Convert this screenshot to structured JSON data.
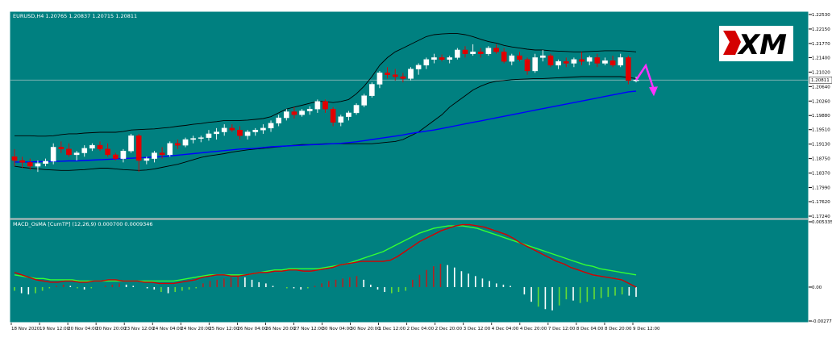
{
  "window": {
    "main_title": "EURUSD,H4  1.20765 1.20837 1.20715 1.20811",
    "sub_title": "MACD_OsMA [CumTP] (12,26,9) 0.000700 0.0009346",
    "logo_text": "XM"
  },
  "colors": {
    "panel_bg": "#008080",
    "candle_bull": "#ffffff",
    "candle_bear": "#e00000",
    "band": "#000000",
    "ma": "#0000ff",
    "macd_line": "#d40000",
    "signal_line": "#33ff33",
    "hist_pos_up": "#ffffff",
    "hist_pos_down": "#b22222",
    "hist_neg_up": "#66dd33",
    "hist_neg_down": "#ffffff",
    "arrow": "#ff33ff"
  },
  "price_axis": {
    "labels": [
      "1.22530",
      "1.22150",
      "1.21770",
      "1.21400",
      "1.21020",
      "1.20640",
      "1.20260",
      "1.19880",
      "1.19510",
      "1.19130",
      "1.18750",
      "1.18370",
      "1.17990",
      "1.17620",
      "1.17240"
    ],
    "current": "1.20811"
  },
  "macd_axis": {
    "labels": [
      "0.005335",
      "0.00",
      "-0.00277"
    ]
  },
  "time_axis": {
    "labels": [
      "18 Nov 2020",
      "19 Nov 12:00",
      "20 Nov 04:00",
      "20 Nov 20:00",
      "23 Nov 12:00",
      "24 Nov 04:00",
      "24 Nov 20:00",
      "25 Nov 12:00",
      "26 Nov 04:00",
      "26 Nov 20:00",
      "27 Nov 12:00",
      "30 Nov 04:00",
      "30 Nov 20:00",
      "1 Dec 12:00",
      "2 Dec 04:00",
      "2 Dec 20:00",
      "3 Dec 12:00",
      "4 Dec 04:00",
      "4 Dec 20:00",
      "7 Dec 12:00",
      "8 Dec 04:00",
      "8 Dec 20:00",
      "9 Dec 12:00"
    ]
  },
  "chart_data": [
    {
      "type": "candlestick",
      "title": "EURUSD,H4",
      "ylim": [
        1.1724,
        1.2253
      ],
      "x": [
        "18 Nov 2020",
        "19 Nov 12:00",
        "20 Nov 04:00",
        "20 Nov 20:00",
        "23 Nov 12:00",
        "24 Nov 04:00",
        "24 Nov 20:00",
        "25 Nov 12:00",
        "26 Nov 04:00",
        "26 Nov 20:00",
        "27 Nov 12:00",
        "30 Nov 04:00",
        "30 Nov 20:00",
        "1 Dec 12:00",
        "2 Dec 04:00",
        "2 Dec 20:00",
        "3 Dec 12:00",
        "4 Dec 04:00",
        "4 Dec 20:00",
        "7 Dec 12:00",
        "8 Dec 04:00",
        "8 Dec 20:00",
        "9 Dec 12:00"
      ],
      "candles": [
        [
          1.188,
          1.19,
          1.1855,
          1.187
        ],
        [
          1.187,
          1.188,
          1.185,
          1.1865
        ],
        [
          1.1865,
          1.1875,
          1.1845,
          1.1855
        ],
        [
          1.1855,
          1.187,
          1.184,
          1.1862
        ],
        [
          1.1862,
          1.1875,
          1.1855,
          1.1868
        ],
        [
          1.1868,
          1.1915,
          1.186,
          1.1905
        ],
        [
          1.1905,
          1.192,
          1.189,
          1.19
        ],
        [
          1.19,
          1.1915,
          1.188,
          1.1885
        ],
        [
          1.1885,
          1.1895,
          1.187,
          1.189
        ],
        [
          1.189,
          1.191,
          1.188,
          1.1902
        ],
        [
          1.1902,
          1.1915,
          1.1895,
          1.191
        ],
        [
          1.191,
          1.192,
          1.1895,
          1.19
        ],
        [
          1.19,
          1.1915,
          1.188,
          1.1885
        ],
        [
          1.1885,
          1.189,
          1.187,
          1.1875
        ],
        [
          1.1875,
          1.19,
          1.1865,
          1.1895
        ],
        [
          1.1895,
          1.194,
          1.189,
          1.1935
        ],
        [
          1.1935,
          1.194,
          1.184,
          1.187
        ],
        [
          1.187,
          1.188,
          1.186,
          1.1875
        ],
        [
          1.1875,
          1.1895,
          1.1865,
          1.189
        ],
        [
          1.189,
          1.1905,
          1.1875,
          1.1885
        ],
        [
          1.1885,
          1.192,
          1.188,
          1.1915
        ],
        [
          1.1915,
          1.1925,
          1.19,
          1.191
        ],
        [
          1.191,
          1.193,
          1.1905,
          1.1925
        ],
        [
          1.1925,
          1.1935,
          1.1915,
          1.1928
        ],
        [
          1.1928,
          1.1935,
          1.1918,
          1.193
        ],
        [
          1.193,
          1.195,
          1.1922,
          1.194
        ],
        [
          1.194,
          1.1955,
          1.1925,
          1.1945
        ],
        [
          1.1945,
          1.1965,
          1.1935,
          1.1955
        ],
        [
          1.1955,
          1.1965,
          1.1945,
          1.195
        ],
        [
          1.195,
          1.196,
          1.1925,
          1.1935
        ],
        [
          1.1935,
          1.195,
          1.1925,
          1.1945
        ],
        [
          1.1945,
          1.1955,
          1.1935,
          1.195
        ],
        [
          1.195,
          1.1965,
          1.194,
          1.1955
        ],
        [
          1.1955,
          1.1975,
          1.1945,
          1.1968
        ],
        [
          1.1968,
          1.199,
          1.196,
          1.1982
        ],
        [
          1.1982,
          1.2005,
          1.1975,
          1.1998
        ],
        [
          1.1998,
          1.201,
          1.198,
          1.199
        ],
        [
          1.199,
          1.2005,
          1.1985,
          1.2
        ],
        [
          1.2,
          1.2012,
          1.199,
          1.2005
        ],
        [
          1.2005,
          1.203,
          1.1995,
          1.2025
        ],
        [
          1.2025,
          1.203,
          1.1995,
          1.2005
        ],
        [
          1.2005,
          1.201,
          1.196,
          1.197
        ],
        [
          1.197,
          1.199,
          1.196,
          1.1985
        ],
        [
          1.1985,
          1.2,
          1.1975,
          1.1995
        ],
        [
          1.1995,
          1.202,
          1.199,
          1.2015
        ],
        [
          1.2015,
          1.2045,
          1.201,
          1.204
        ],
        [
          1.204,
          1.2075,
          1.2035,
          1.207
        ],
        [
          1.207,
          1.2105,
          1.206,
          1.21
        ],
        [
          1.21,
          1.2115,
          1.2085,
          1.2095
        ],
        [
          1.2095,
          1.211,
          1.208,
          1.209
        ],
        [
          1.209,
          1.21,
          1.2075,
          1.2085
        ],
        [
          1.2085,
          1.2115,
          1.208,
          1.211
        ],
        [
          1.211,
          1.2125,
          1.2095,
          1.212
        ],
        [
          1.212,
          1.214,
          1.211,
          1.2135
        ],
        [
          1.2135,
          1.215,
          1.2125,
          1.214
        ],
        [
          1.214,
          1.2148,
          1.213,
          1.2135
        ],
        [
          1.2135,
          1.2145,
          1.2125,
          1.214
        ],
        [
          1.214,
          1.2165,
          1.2135,
          1.216
        ],
        [
          1.216,
          1.217,
          1.214,
          1.215
        ],
        [
          1.215,
          1.2175,
          1.2145,
          1.2155
        ],
        [
          1.2155,
          1.2165,
          1.214,
          1.215
        ],
        [
          1.215,
          1.217,
          1.2145,
          1.2165
        ],
        [
          1.2165,
          1.2175,
          1.215,
          1.2155
        ],
        [
          1.2155,
          1.2165,
          1.2125,
          1.213
        ],
        [
          1.213,
          1.215,
          1.212,
          1.2145
        ],
        [
          1.2145,
          1.2155,
          1.213,
          1.2135
        ],
        [
          1.2135,
          1.214,
          1.2095,
          1.2105
        ],
        [
          1.2105,
          1.215,
          1.21,
          1.214
        ],
        [
          1.214,
          1.216,
          1.213,
          1.2145
        ],
        [
          1.2145,
          1.215,
          1.2115,
          1.212
        ],
        [
          1.212,
          1.2135,
          1.211,
          1.213
        ],
        [
          1.213,
          1.214,
          1.2115,
          1.2125
        ],
        [
          1.2125,
          1.214,
          1.2115,
          1.2135
        ],
        [
          1.2135,
          1.2155,
          1.212,
          1.213
        ],
        [
          1.213,
          1.2145,
          1.212,
          1.214
        ],
        [
          1.214,
          1.215,
          1.2115,
          1.2125
        ],
        [
          1.2125,
          1.214,
          1.212,
          1.2132
        ],
        [
          1.2132,
          1.2145,
          1.2115,
          1.212
        ],
        [
          1.212,
          1.215,
          1.2115,
          1.214
        ],
        [
          1.214,
          1.2145,
          1.207,
          1.208
        ],
        [
          1.208,
          1.209,
          1.2075,
          1.2081
        ]
      ],
      "bands_upper": [
        1.1935,
        1.1935,
        1.1935,
        1.1934,
        1.1934,
        1.1935,
        1.1938,
        1.194,
        1.194,
        1.1942,
        1.1943,
        1.1944,
        1.1944,
        1.1944,
        1.1946,
        1.195,
        1.1951,
        1.1952,
        1.1953,
        1.1955,
        1.1957,
        1.196,
        1.1962,
        1.1965,
        1.1967,
        1.197,
        1.1972,
        1.1975,
        1.1975,
        1.1975,
        1.1976,
        1.1978,
        1.198,
        1.1985,
        1.1995,
        1.2005,
        1.201,
        1.2015,
        1.202,
        1.2025,
        1.2025,
        1.2022,
        1.2025,
        1.203,
        1.2045,
        1.2065,
        1.209,
        1.212,
        1.214,
        1.2155,
        1.2165,
        1.2175,
        1.2185,
        1.2195,
        1.22,
        1.2202,
        1.2203,
        1.2203,
        1.22,
        1.2195,
        1.2188,
        1.2182,
        1.2178,
        1.2172,
        1.2168,
        1.2165,
        1.2162,
        1.216,
        1.216,
        1.2158,
        1.2157,
        1.2156,
        1.2155,
        1.2155,
        1.2156,
        1.2157,
        1.2158,
        1.2158,
        1.2158,
        1.2157,
        1.2155
      ],
      "bands_lower": [
        1.1855,
        1.1852,
        1.185,
        1.1848,
        1.1846,
        1.1845,
        1.1844,
        1.1844,
        1.1845,
        1.1846,
        1.1848,
        1.185,
        1.185,
        1.1848,
        1.1846,
        1.1845,
        1.1844,
        1.1845,
        1.1848,
        1.1852,
        1.1856,
        1.186,
        1.1866,
        1.1872,
        1.1878,
        1.1882,
        1.1885,
        1.1888,
        1.1892,
        1.1895,
        1.1898,
        1.19,
        1.1902,
        1.1904,
        1.1906,
        1.1908,
        1.191,
        1.1912,
        1.1912,
        1.1913,
        1.1914,
        1.1914,
        1.1914,
        1.1914,
        1.1914,
        1.1914,
        1.1914,
        1.1916,
        1.1918,
        1.192,
        1.1925,
        1.1935,
        1.1945,
        1.196,
        1.1975,
        1.199,
        1.201,
        1.2025,
        1.204,
        1.2055,
        1.2065,
        1.2073,
        1.2078,
        1.208,
        1.2082,
        1.2083,
        1.2084,
        1.2085,
        1.2085,
        1.2086,
        1.2087,
        1.2088,
        1.2089,
        1.209,
        1.209,
        1.209,
        1.209,
        1.209,
        1.209,
        1.2088,
        1.2085
      ],
      "ma": [
        1.1866,
        1.1866,
        1.1866,
        1.1867,
        1.1867,
        1.1868,
        1.1868,
        1.1869,
        1.1869,
        1.187,
        1.1871,
        1.1872,
        1.1873,
        1.1874,
        1.1875,
        1.1876,
        1.1877,
        1.1878,
        1.1879,
        1.188,
        1.1882,
        1.1884,
        1.1886,
        1.1888,
        1.189,
        1.1892,
        1.1894,
        1.1896,
        1.1898,
        1.19,
        1.1901,
        1.1902,
        1.1904,
        1.1906,
        1.1907,
        1.1908,
        1.1909,
        1.191,
        1.1911,
        1.1912,
        1.1913,
        1.1914,
        1.1915,
        1.1917,
        1.1919,
        1.1922,
        1.1925,
        1.1928,
        1.1931,
        1.1934,
        1.1937,
        1.1941,
        1.1944,
        1.1947,
        1.195,
        1.1954,
        1.1958,
        1.1962,
        1.1966,
        1.197,
        1.1974,
        1.1978,
        1.1982,
        1.1986,
        1.199,
        1.1994,
        1.1998,
        1.2002,
        1.2006,
        1.201,
        1.2014,
        1.2018,
        1.2022,
        1.2026,
        1.203,
        1.2034,
        1.2038,
        1.2042,
        1.2046,
        1.205,
        1.2052
      ],
      "current_price": 1.20811
    },
    {
      "type": "bar",
      "title": "MACD_OsMA [CumTP] (12,26,9)",
      "ylim": [
        -0.00277,
        0.005335
      ],
      "histogram": [
        -0.0003,
        -0.0005,
        -0.0006,
        -0.0005,
        -0.0003,
        -0.0001,
        0.0001,
        0.0002,
        0.0001,
        -0.0001,
        -0.0002,
        -0.0001,
        0.0,
        0.0001,
        0.0002,
        0.0003,
        0.0002,
        0.0001,
        0.0,
        -0.0001,
        -0.0002,
        -0.0004,
        -0.0005,
        -0.0004,
        -0.0003,
        -0.0002,
        -0.0001,
        0.0003,
        0.0005,
        0.0006,
        0.0007,
        0.0008,
        0.0009,
        0.0008,
        0.0006,
        0.0004,
        0.0003,
        0.0001,
        0.0,
        -0.0001,
        -0.0001,
        -0.0002,
        -0.0001,
        0.0001,
        0.0003,
        0.0005,
        0.0006,
        0.0007,
        0.0008,
        0.0009,
        0.0006,
        0.0002,
        -0.0002,
        -0.0004,
        -0.0005,
        -0.0004,
        -0.0003,
        0.0006,
        0.001,
        0.0014,
        0.0017,
        0.0019,
        0.0018,
        0.0016,
        0.0013,
        0.0011,
        0.0009,
        0.0007,
        0.0005,
        0.0003,
        0.0002,
        0.0001,
        0.0,
        -0.0006,
        -0.0012,
        -0.0016,
        -0.0018,
        -0.0019,
        -0.0015,
        -0.001,
        -0.0011,
        -0.0013,
        -0.0012,
        -0.001,
        -0.0009,
        -0.0008,
        -0.0007,
        -0.0006,
        -0.0007,
        -0.0008
      ],
      "macd_line": [
        0.0012,
        0.001,
        0.0008,
        0.0006,
        0.0005,
        0.0004,
        0.0004,
        0.0005,
        0.0005,
        0.0004,
        0.0004,
        0.0005,
        0.0005,
        0.0006,
        0.0006,
        0.0005,
        0.0005,
        0.0005,
        0.0004,
        0.0004,
        0.0003,
        0.0003,
        0.0003,
        0.0004,
        0.0005,
        0.0006,
        0.0008,
        0.0009,
        0.001,
        0.001,
        0.0009,
        0.0009,
        0.001,
        0.0011,
        0.0012,
        0.0012,
        0.0013,
        0.0013,
        0.0014,
        0.0014,
        0.0013,
        0.0013,
        0.0014,
        0.0015,
        0.0016,
        0.0018,
        0.0019,
        0.002,
        0.0021,
        0.0021,
        0.0021,
        0.0021,
        0.0022,
        0.0025,
        0.0029,
        0.0033,
        0.0037,
        0.004,
        0.0043,
        0.0046,
        0.0048,
        0.005,
        0.0051,
        0.0051,
        0.005,
        0.0049,
        0.0047,
        0.0045,
        0.0043,
        0.004,
        0.0036,
        0.0033,
        0.003,
        0.0027,
        0.0024,
        0.0021,
        0.0019,
        0.0016,
        0.0014,
        0.0012,
        0.001,
        0.0009,
        0.0008,
        0.0007,
        0.0006,
        0.0003,
        0.0
      ],
      "signal_line": [
        0.001,
        0.0009,
        0.0008,
        0.0007,
        0.0007,
        0.0006,
        0.0006,
        0.0006,
        0.0006,
        0.0005,
        0.0005,
        0.0005,
        0.0005,
        0.0005,
        0.0005,
        0.0005,
        0.0005,
        0.0005,
        0.0005,
        0.0005,
        0.0005,
        0.0005,
        0.0005,
        0.0006,
        0.0007,
        0.0008,
        0.0009,
        0.001,
        0.001,
        0.001,
        0.001,
        0.001,
        0.001,
        0.0011,
        0.0012,
        0.0013,
        0.0014,
        0.0014,
        0.0015,
        0.0015,
        0.0015,
        0.0015,
        0.0015,
        0.0016,
        0.0017,
        0.0018,
        0.0019,
        0.0021,
        0.0023,
        0.0025,
        0.0027,
        0.0029,
        0.0032,
        0.0035,
        0.0038,
        0.0041,
        0.0044,
        0.0046,
        0.0048,
        0.0049,
        0.005,
        0.005,
        0.005,
        0.0049,
        0.0048,
        0.0046,
        0.0044,
        0.0042,
        0.004,
        0.0038,
        0.0036,
        0.0034,
        0.0032,
        0.003,
        0.0028,
        0.0026,
        0.0024,
        0.0022,
        0.002,
        0.0018,
        0.0017,
        0.0015,
        0.0014,
        0.0013,
        0.0012,
        0.0011,
        0.001
      ]
    }
  ]
}
